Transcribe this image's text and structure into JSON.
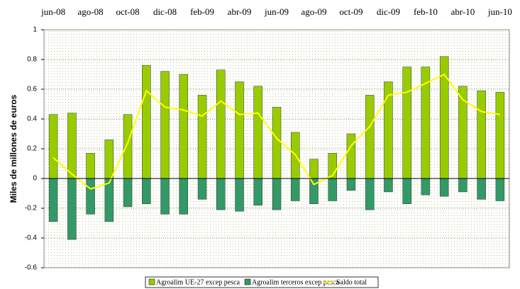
{
  "chart_data": {
    "type": "bar_line",
    "y_label": "Miles de millones de euros",
    "categories": [
      "jun-08",
      null,
      "ago-08",
      null,
      "oct-08",
      null,
      "dic-08",
      null,
      "feb-09",
      null,
      "abr-09",
      null,
      "jun-09",
      null,
      "ago-09",
      null,
      "oct-09",
      null,
      "dic-09",
      null,
      "feb-10",
      null,
      "abr-10",
      null,
      "jun-10"
    ],
    "series": [
      {
        "name": "Agroalim UE-27 excep pesca",
        "color": "#99cc00",
        "kind": "bar",
        "values": [
          0.43,
          0.44,
          0.17,
          0.26,
          0.43,
          0.76,
          0.72,
          0.7,
          0.56,
          0.73,
          0.65,
          0.62,
          0.48,
          0.31,
          0.13,
          0.17,
          0.3,
          0.56,
          0.65,
          0.75,
          0.75,
          0.82,
          0.62,
          0.59,
          0.58
        ]
      },
      {
        "name": "Agroalim terceros excep pesca",
        "color": "#339966",
        "kind": "bar",
        "values": [
          -0.29,
          -0.41,
          -0.24,
          -0.29,
          -0.19,
          -0.17,
          -0.24,
          -0.24,
          -0.14,
          -0.21,
          -0.22,
          -0.18,
          -0.21,
          -0.15,
          -0.17,
          -0.15,
          -0.08,
          -0.21,
          -0.09,
          -0.17,
          -0.11,
          -0.12,
          -0.09,
          -0.14,
          -0.15
        ]
      },
      {
        "name": "Saldo total",
        "color": "#ffff00",
        "kind": "line",
        "values": [
          0.14,
          0.03,
          -0.07,
          -0.03,
          0.24,
          0.59,
          0.48,
          0.46,
          0.42,
          0.52,
          0.43,
          0.44,
          0.27,
          0.16,
          -0.04,
          0.02,
          0.22,
          0.35,
          0.56,
          0.58,
          0.64,
          0.7,
          0.53,
          0.45,
          0.43
        ]
      }
    ],
    "ylim": [
      -0.6,
      1
    ],
    "yticks": [
      -0.6,
      -0.4,
      -0.2,
      0,
      0.2,
      0.4,
      0.6,
      0.8,
      1
    ],
    "grid": true
  }
}
